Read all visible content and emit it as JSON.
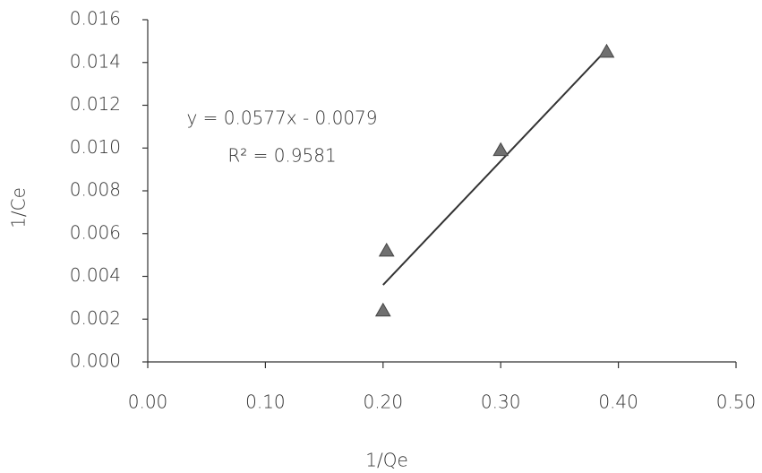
{
  "chart_data": {
    "type": "scatter",
    "x_label": "1/Qe",
    "y_label": "1/Ce",
    "equation": "y = 0.0577x - 0.0079",
    "r_squared": "R² = 0.9581",
    "series": [
      {
        "name": "1/Ce",
        "color": "#707070",
        "x": [
          0.2,
          0.203,
          0.3,
          0.39
        ],
        "values": [
          0.0024,
          0.0052,
          0.0099,
          0.0145
        ]
      }
    ],
    "trendline": {
      "color": "#333333",
      "x": [
        0.2,
        0.39
      ],
      "values": [
        0.0036,
        0.0146
      ]
    },
    "xlim": [
      0,
      0.5
    ],
    "ylim": [
      0,
      0.016
    ],
    "xticks": [
      {
        "value": 0,
        "label": "0.00"
      },
      {
        "value": 0.1,
        "label": "0.10"
      },
      {
        "value": 0.2,
        "label": "0.20"
      },
      {
        "value": 0.3,
        "label": "0.30"
      },
      {
        "value": 0.4,
        "label": "0.40"
      },
      {
        "value": 0.5,
        "label": "0.50"
      }
    ],
    "yticks": [
      {
        "value": 0,
        "label": "0.000"
      },
      {
        "value": 0.002,
        "label": "0.002"
      },
      {
        "value": 0.004,
        "label": "0.004"
      },
      {
        "value": 0.006,
        "label": "0.006"
      },
      {
        "value": 0.008,
        "label": "0.008"
      },
      {
        "value": 0.01,
        "label": "0.010"
      },
      {
        "value": 0.012,
        "label": "0.012"
      },
      {
        "value": 0.014,
        "label": "0.014"
      },
      {
        "value": 0.016,
        "label": "0.016"
      }
    ],
    "grid": false
  }
}
